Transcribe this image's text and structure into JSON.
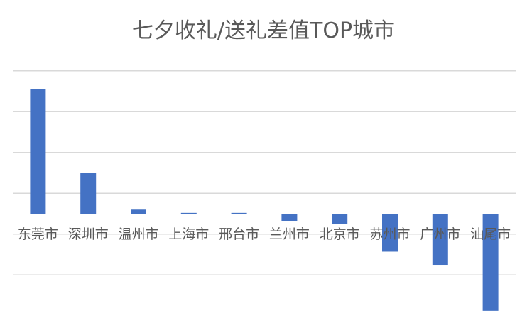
{
  "chart_data": {
    "type": "bar",
    "title": "七夕收礼/送礼差值TOP城市",
    "categories": [
      "东莞市",
      "深圳市",
      "温州市",
      "上海市",
      "邢台市",
      "兰州市",
      "北京市",
      "苏州市",
      "广州市",
      "汕尾市"
    ],
    "values": [
      3.05,
      1.0,
      0.1,
      0.02,
      0.02,
      -0.18,
      -0.25,
      -0.93,
      -1.27,
      -2.38
    ],
    "ylim": [
      -2.5,
      4
    ],
    "gridline_step": 1,
    "grid": true,
    "axis_tick_labels": false,
    "legend": "none",
    "bar_color": "#4472C4",
    "gridline_color": "#D9D9D9",
    "label_color": "#595959"
  }
}
